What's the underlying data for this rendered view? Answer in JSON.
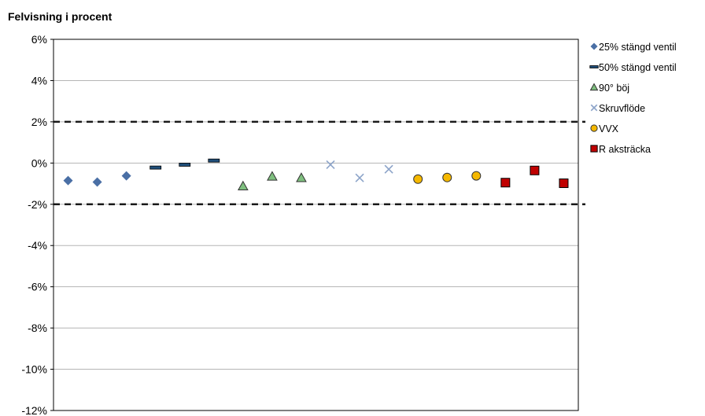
{
  "chart_data": {
    "type": "scatter",
    "title": "Felvisning i procent",
    "xlabel": "",
    "ylabel": "",
    "ylim": [
      -12,
      6
    ],
    "yticks": [
      6,
      4,
      2,
      0,
      -2,
      -4,
      -6,
      -8,
      -10,
      -12
    ],
    "ytick_labels": [
      "6%",
      "4%",
      "2%",
      "0%",
      "-2%",
      "-4%",
      "-6%",
      "-8%",
      "-10%",
      "-12%"
    ],
    "xlim": [
      0.5,
      18.5
    ],
    "grid": true,
    "legend_position": "right",
    "reference_lines": [
      2,
      -2
    ],
    "series": [
      {
        "name": "25% stängd ventil",
        "marker": "diamond",
        "color": "#4a6fa5",
        "points": [
          {
            "x": 1,
            "y": -0.85
          },
          {
            "x": 2,
            "y": -0.92
          },
          {
            "x": 3,
            "y": -0.62
          }
        ]
      },
      {
        "name": "50% stängd ventil",
        "marker": "dash",
        "color": "#1f4e79",
        "points": [
          {
            "x": 4,
            "y": -0.22
          },
          {
            "x": 5,
            "y": -0.08
          },
          {
            "x": 6,
            "y": 0.12
          }
        ]
      },
      {
        "name": "90° böj",
        "marker": "triangle",
        "color": "#7fbf7f",
        "points": [
          {
            "x": 7,
            "y": -1.12
          },
          {
            "x": 8,
            "y": -0.65
          },
          {
            "x": 9,
            "y": -0.72
          }
        ]
      },
      {
        "name": "Skruvflöde",
        "marker": "x",
        "color": "#8da4c9",
        "points": [
          {
            "x": 10,
            "y": -0.08
          },
          {
            "x": 11,
            "y": -0.72
          },
          {
            "x": 12,
            "y": -0.3
          }
        ]
      },
      {
        "name": "VVX",
        "marker": "circle",
        "color": "#f5b800",
        "points": [
          {
            "x": 13,
            "y": -0.78
          },
          {
            "x": 14,
            "y": -0.7
          },
          {
            "x": 15,
            "y": -0.62
          }
        ]
      },
      {
        "name": "R aksträcka",
        "marker": "square",
        "color": "#c00000",
        "points": [
          {
            "x": 16,
            "y": -0.95
          },
          {
            "x": 17,
            "y": -0.36
          },
          {
            "x": 18,
            "y": -0.98
          }
        ]
      }
    ]
  }
}
